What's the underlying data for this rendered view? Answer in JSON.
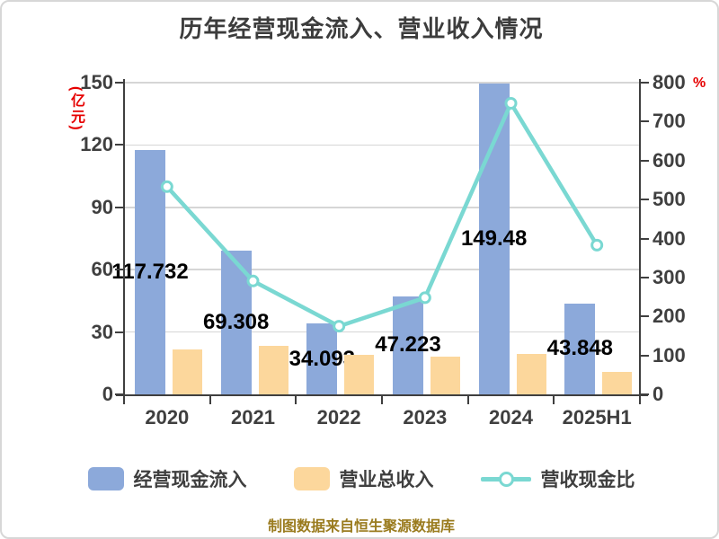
{
  "title": "历年经营现金流入、营业收入情况",
  "footer": "制图数据来自恒生聚源数据库",
  "colors": {
    "cash_bar": "#8ca9da",
    "revenue_bar": "#fcd79c",
    "ratio_line": "#7ad8d2",
    "axis_text": "#3f3f3f",
    "data_label_text": "#000000",
    "unit_text_red": "#e60000",
    "grid": "#d6d6d6",
    "footer_text": "#9a7b1e"
  },
  "left_axis": {
    "unit": "(亿元)",
    "ticks": [
      0,
      30,
      60,
      90,
      120,
      150
    ]
  },
  "right_axis": {
    "unit": "%",
    "ticks": [
      0,
      100,
      200,
      300,
      400,
      500,
      600,
      700,
      800
    ]
  },
  "chart_data": {
    "type": "combo-bar-line",
    "categories": [
      "2020",
      "2021",
      "2022",
      "2023",
      "2024",
      "2025H1"
    ],
    "series": [
      {
        "name": "经营现金流入",
        "type": "bar",
        "axis": "left",
        "color": "#8ca9da",
        "values": [
          117.732,
          69.308,
          34.093,
          47.223,
          149.48,
          43.848
        ],
        "data_labels": [
          "117.732",
          "69.308",
          "34.093",
          "47.223",
          "149.48",
          "43.848"
        ]
      },
      {
        "name": "营业总收入",
        "type": "bar",
        "axis": "left",
        "color": "#fcd79c",
        "values": [
          21.5,
          23.2,
          19.0,
          18.3,
          19.6,
          11.0
        ]
      },
      {
        "name": "营收现金比",
        "type": "line",
        "axis": "right",
        "color": "#7ad8d2",
        "values": [
          533,
          291,
          175,
          248,
          747,
          383
        ]
      }
    ],
    "left_ylim": [
      0,
      150
    ],
    "right_ylim": [
      0,
      800
    ],
    "grid": "horizontal",
    "legend_position": "bottom"
  },
  "legend": {
    "items": [
      {
        "label": "经营现金流入",
        "type": "bar",
        "color": "#8ca9da"
      },
      {
        "label": "营业总收入",
        "type": "bar",
        "color": "#fcd79c"
      },
      {
        "label": "营收现金比",
        "type": "line",
        "color": "#7ad8d2"
      }
    ]
  }
}
